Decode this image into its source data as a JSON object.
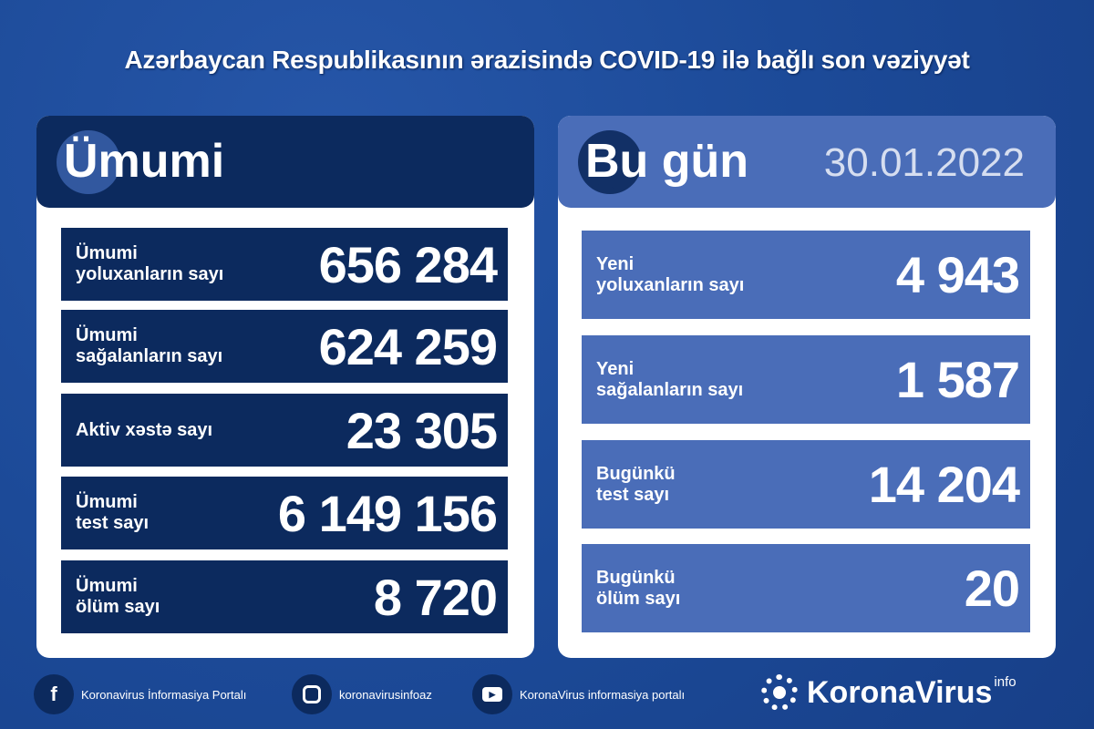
{
  "title": "Azərbaycan Respublikasının ərazisində COVID-19 ilə bağlı son vəziyyət",
  "total": {
    "header": "Ümumi",
    "rows": [
      {
        "label1": "Ümumi",
        "label2": "yoluxanların sayı",
        "value": "656 284"
      },
      {
        "label1": "Ümumi",
        "label2": "sağalanların sayı",
        "value": "624 259"
      },
      {
        "label1": "Aktiv xəstə sayı",
        "label2": "",
        "value": "23 305"
      },
      {
        "label1": "Ümumi",
        "label2": "test sayı",
        "value": "6 149 156"
      },
      {
        "label1": "Ümumi",
        "label2": "ölüm sayı",
        "value": "8 720"
      }
    ]
  },
  "today": {
    "header": "Bu gün",
    "date": "30.01.2022",
    "rows": [
      {
        "label1": "Yeni",
        "label2": "yoluxanların sayı",
        "value": "4 943"
      },
      {
        "label1": "Yeni",
        "label2": "sağalanların sayı",
        "value": "1 587"
      },
      {
        "label1": "Bugünkü",
        "label2": "test sayı",
        "value": "14 204"
      },
      {
        "label1": "Bugünkü",
        "label2": "ölüm sayı",
        "value": "20"
      }
    ]
  },
  "footer": {
    "facebook": "Koronavirus İnformasiya Portalı",
    "instagram": "koronavirusinfoaz",
    "youtube": "KoronaVirus informasiya portalı",
    "brand": "KoronaVirus",
    "brand_sup": "info"
  },
  "colors": {
    "background": "#1c4a98",
    "navy": "#0c2a5e",
    "today_blue": "#4a6db8"
  }
}
